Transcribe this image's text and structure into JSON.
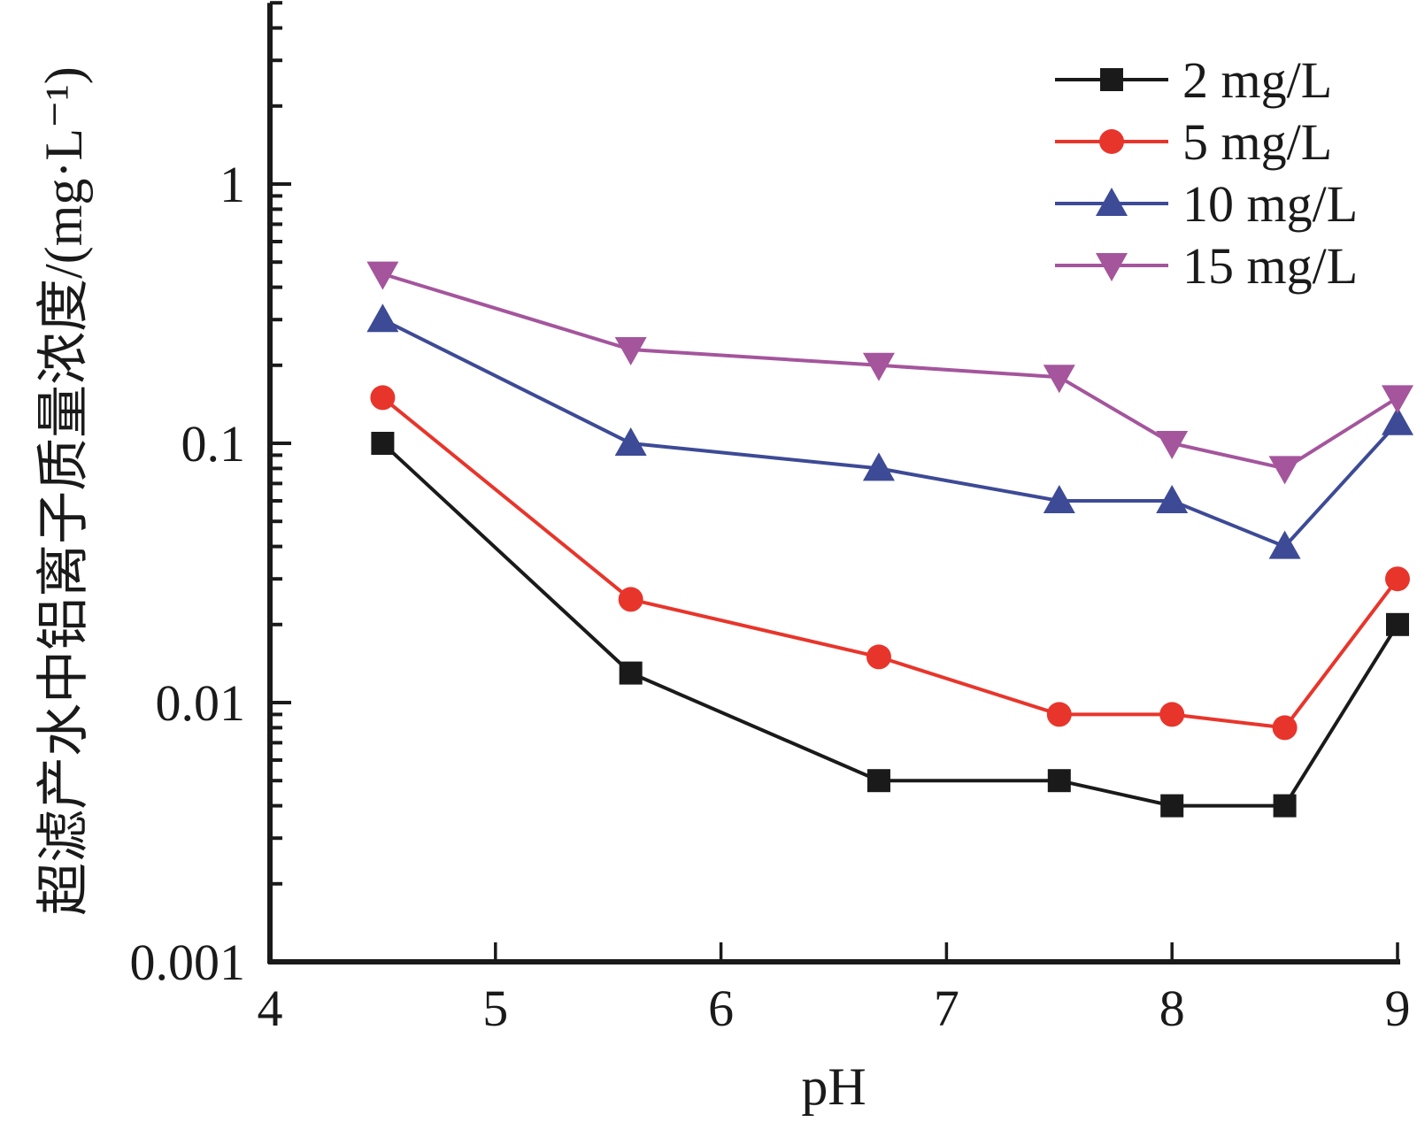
{
  "chart_data": {
    "type": "line",
    "title": "",
    "xlabel": "pH",
    "ylabel": "超滤产水中铝离子质量浓度/(mg·L⁻¹)",
    "xscale": "linear",
    "yscale": "log",
    "xlim": [
      4,
      9
    ],
    "ylim": [
      0.001,
      5
    ],
    "xticks": [
      4,
      5,
      6,
      7,
      8,
      9
    ],
    "xtick_labels": [
      "4",
      "5",
      "6",
      "7",
      "8",
      "9"
    ],
    "yticks": [
      0.001,
      0.01,
      0.1,
      1
    ],
    "ytick_labels": [
      "0.001",
      "0.01",
      "0.1",
      "1"
    ],
    "grid": false,
    "legend_position": "top-right",
    "x": [
      4.5,
      5.6,
      6.7,
      7.5,
      8.0,
      8.5,
      9.0
    ],
    "series": [
      {
        "name": "2 mg/L",
        "color": "#1a1a1a",
        "marker": "square",
        "values": [
          0.1,
          0.013,
          0.005,
          0.005,
          0.004,
          0.004,
          0.02
        ]
      },
      {
        "name": "5 mg/L",
        "color": "#e8352b",
        "marker": "circle",
        "values": [
          0.15,
          0.025,
          0.015,
          0.009,
          0.009,
          0.008,
          0.03
        ]
      },
      {
        "name": "10 mg/L",
        "color": "#3d4a96",
        "marker": "triangle-up",
        "values": [
          0.3,
          0.1,
          0.08,
          0.06,
          0.06,
          0.04,
          0.12
        ]
      },
      {
        "name": "15 mg/L",
        "color": "#a4559c",
        "marker": "triangle-down",
        "values": [
          0.45,
          0.23,
          0.2,
          0.18,
          0.1,
          0.08,
          0.15
        ]
      }
    ]
  }
}
